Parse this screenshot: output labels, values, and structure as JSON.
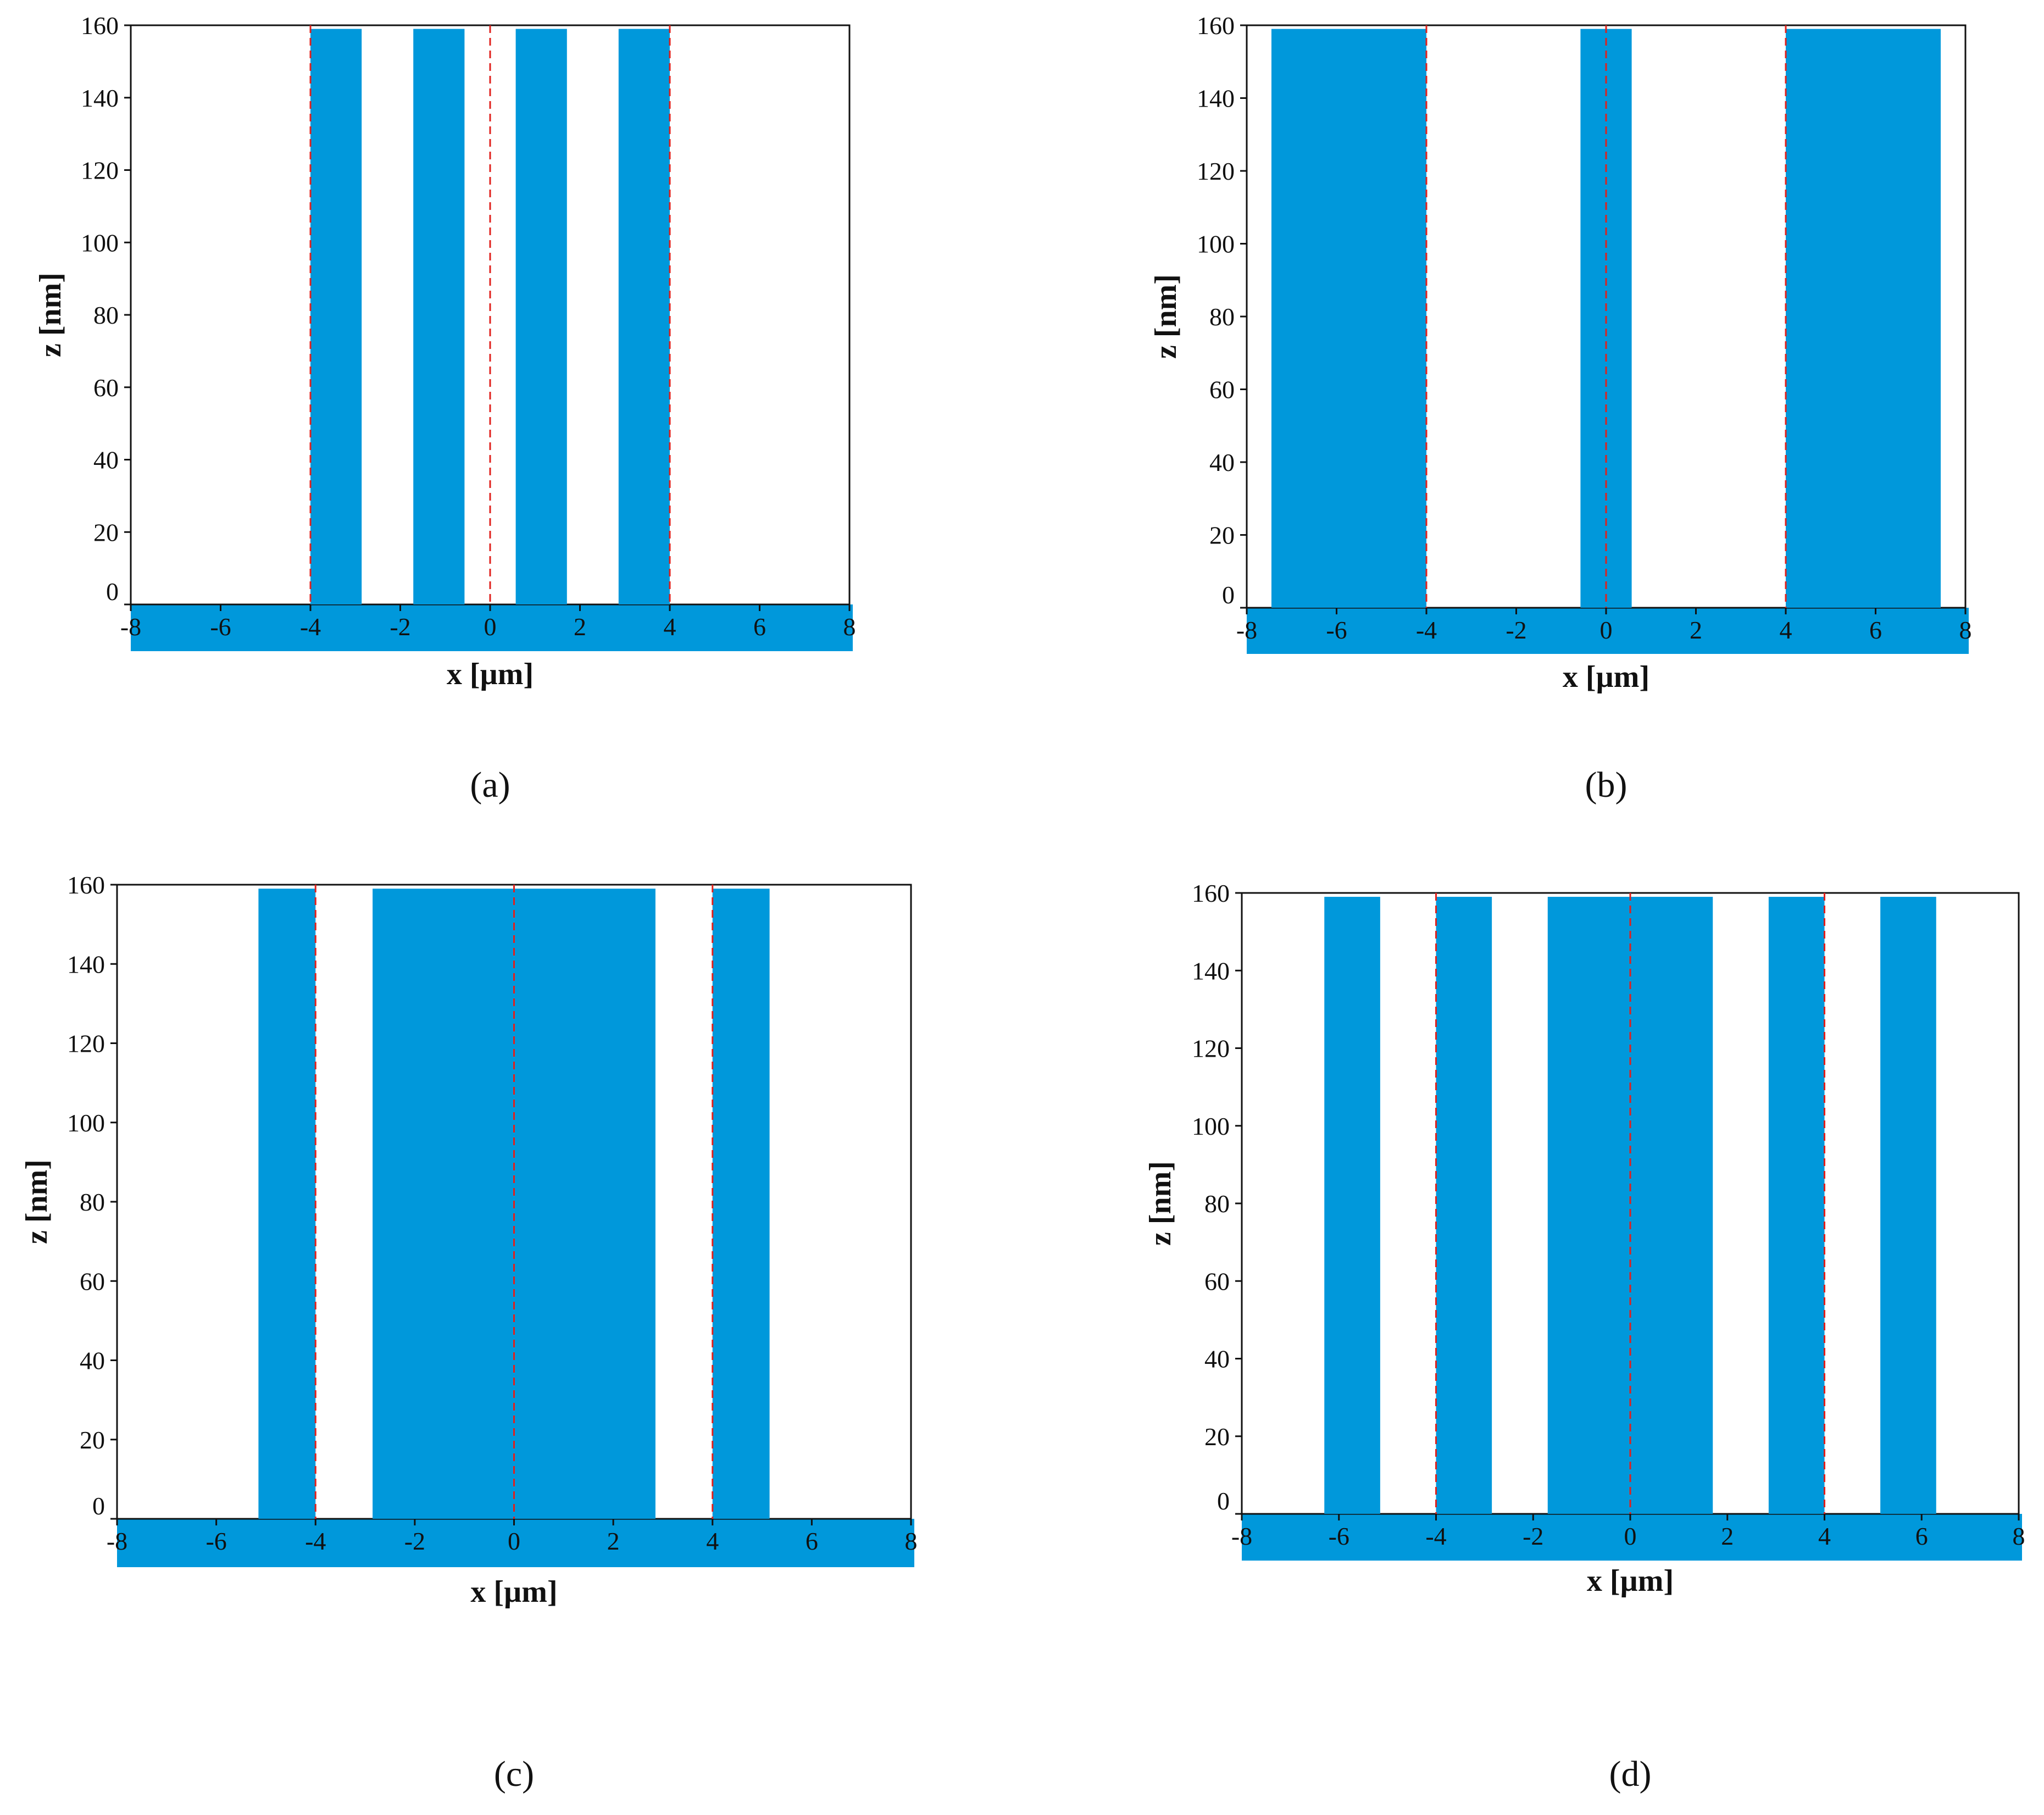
{
  "colors": {
    "fill": "#0098DB",
    "marker": "#E0211D",
    "axis": "#111111"
  },
  "chart_data": [
    {
      "type": "area",
      "panel_label": "(a)",
      "xlabel": "x [µm]",
      "ylabel": "z [nm]",
      "xlim": [
        -8,
        8
      ],
      "ylim": [
        0,
        160
      ],
      "x_ticks": [
        "-8",
        "-6",
        "-4",
        "-2",
        "0",
        "2",
        "4",
        "6",
        "8"
      ],
      "y_ticks": [
        "0",
        "20",
        "40",
        "60",
        "80",
        "100",
        "120",
        "140",
        "160"
      ],
      "bars": [
        {
          "x0": -4.0,
          "x1": -2.86,
          "height": 159
        },
        {
          "x0": -1.71,
          "x1": -0.57,
          "height": 159
        },
        {
          "x0": 0.57,
          "x1": 1.71,
          "height": 159
        },
        {
          "x0": 2.86,
          "x1": 4.0,
          "height": 159
        }
      ],
      "markers_x": [
        -4,
        0,
        4
      ]
    },
    {
      "type": "area",
      "panel_label": "(b)",
      "xlabel": "x [µm]",
      "ylabel": "z [nm]",
      "xlim": [
        -8,
        8
      ],
      "ylim": [
        0,
        160
      ],
      "x_ticks": [
        "-8",
        "-6",
        "-4",
        "-2",
        "0",
        "2",
        "4",
        "6",
        "8"
      ],
      "y_ticks": [
        "0",
        "20",
        "40",
        "60",
        "80",
        "100",
        "120",
        "140",
        "160"
      ],
      "bars": [
        {
          "x0": -7.45,
          "x1": -4.0,
          "height": 159
        },
        {
          "x0": -0.57,
          "x1": 0.57,
          "height": 159
        },
        {
          "x0": 4.0,
          "x1": 7.45,
          "height": 159
        }
      ],
      "markers_x": [
        -4,
        0,
        4
      ]
    },
    {
      "type": "area",
      "panel_label": "(c)",
      "xlabel": "x [µm]",
      "ylabel": "z [nm]",
      "xlim": [
        -8,
        8
      ],
      "ylim": [
        0,
        160
      ],
      "x_ticks": [
        "-8",
        "-6",
        "-4",
        "-2",
        "0",
        "2",
        "4",
        "6",
        "8"
      ],
      "y_ticks": [
        "0",
        "20",
        "40",
        "60",
        "80",
        "100",
        "120",
        "140",
        "160"
      ],
      "bars": [
        {
          "x0": -5.15,
          "x1": -4.0,
          "height": 159
        },
        {
          "x0": -2.85,
          "x1": 2.85,
          "height": 159
        },
        {
          "x0": 4.0,
          "x1": 5.15,
          "height": 159
        }
      ],
      "markers_x": [
        -4,
        0,
        4
      ]
    },
    {
      "type": "area",
      "panel_label": "(d)",
      "xlabel": "x [µm]",
      "ylabel": "z [nm]",
      "xlim": [
        -8,
        8
      ],
      "ylim": [
        0,
        160
      ],
      "x_ticks": [
        "-8",
        "-6",
        "-4",
        "-2",
        "0",
        "2",
        "4",
        "6",
        "8"
      ],
      "y_ticks": [
        "0",
        "20",
        "40",
        "60",
        "80",
        "100",
        "120",
        "140",
        "160"
      ],
      "bars": [
        {
          "x0": -6.3,
          "x1": -5.15,
          "height": 159
        },
        {
          "x0": -4.0,
          "x1": -2.85,
          "height": 159
        },
        {
          "x0": -1.7,
          "x1": 1.7,
          "height": 159
        },
        {
          "x0": 2.85,
          "x1": 4.0,
          "height": 159
        },
        {
          "x0": 5.15,
          "x1": 6.3,
          "height": 159
        }
      ],
      "markers_x": [
        -4,
        0,
        4
      ]
    }
  ]
}
